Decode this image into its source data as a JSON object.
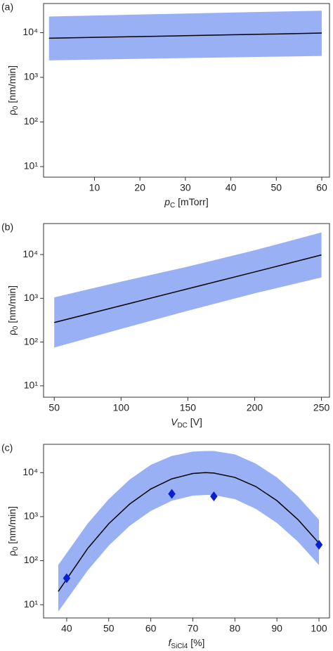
{
  "chart_data": [
    {
      "type": "line",
      "panel": "(a)",
      "log_y": true,
      "x_label": [
        "p",
        "C",
        " [mTorr]"
      ],
      "y_label": [
        "ρ",
        "0",
        " [nm/min]"
      ],
      "xlim": [
        -1.2,
        61.7
      ],
      "xticks": [
        10,
        20,
        30,
        40,
        50,
        60
      ],
      "ylim": [
        5.8,
        45000
      ],
      "yticks": [
        {
          "value": 10,
          "label": "10¹"
        },
        {
          "value": 100,
          "label": "10²"
        },
        {
          "value": 1000,
          "label": "10³"
        },
        {
          "value": 10000,
          "label": "10⁴"
        }
      ],
      "x": [
        0,
        10,
        20,
        30,
        40,
        50,
        60
      ],
      "band": {
        "color": "#99b0f5",
        "lower": [
          2400,
          2500,
          2600,
          2700,
          2800,
          2900,
          3000
        ],
        "upper": [
          23000,
          24200,
          25500,
          26800,
          28200,
          29600,
          31000
        ]
      },
      "line": {
        "color": "#000000",
        "values": [
          7500,
          7850,
          8200,
          8550,
          8950,
          9350,
          9800
        ]
      }
    },
    {
      "type": "line",
      "panel": "(b)",
      "log_y": true,
      "x_label": [
        "V",
        "DC",
        " [V]"
      ],
      "y_label": [
        "ρ",
        "0",
        " [nm/min]"
      ],
      "xlim": [
        42,
        256
      ],
      "xticks": [
        50,
        100,
        150,
        200,
        250
      ],
      "ylim": [
        5.5,
        51000
      ],
      "yticks": [
        {
          "value": 10,
          "label": "10¹"
        },
        {
          "value": 100,
          "label": "10²"
        },
        {
          "value": 1000,
          "label": "10³"
        },
        {
          "value": 10000,
          "label": "10⁴"
        }
      ],
      "x": [
        50,
        100,
        150,
        200,
        250
      ],
      "band": {
        "color": "#99b0f5",
        "lower": [
          75,
          200,
          520,
          1300,
          3000
        ],
        "upper": [
          1050,
          2400,
          5300,
          12500,
          32000
        ]
      },
      "line": {
        "color": "#000000",
        "values": [
          280,
          680,
          1650,
          4000,
          9800
        ]
      }
    },
    {
      "type": "line",
      "panel": "(c)",
      "log_y": true,
      "x_label": [
        "f",
        "SiCl4",
        " [%]"
      ],
      "y_label": [
        "ρ",
        "0",
        " [nm/min]"
      ],
      "xlim": [
        34.5,
        102.5
      ],
      "xticks": [
        40,
        50,
        60,
        70,
        80,
        90,
        100
      ],
      "ylim": [
        5,
        44000
      ],
      "yticks": [
        {
          "value": 10,
          "label": "10¹"
        },
        {
          "value": 100,
          "label": "10²"
        },
        {
          "value": 1000,
          "label": "10³"
        },
        {
          "value": 10000,
          "label": "10⁴"
        }
      ],
      "x": [
        38,
        45,
        50,
        55,
        60,
        65,
        70,
        73,
        75,
        80,
        85,
        90,
        95,
        100
      ],
      "band": {
        "color": "#99b0f5",
        "lower": [
          7,
          60,
          220,
          620,
          1350,
          2300,
          3000,
          3100,
          3100,
          2500,
          1500,
          720,
          270,
          80
        ],
        "upper": [
          80,
          700,
          2500,
          7000,
          15000,
          24000,
          30000,
          31000,
          31000,
          26000,
          16000,
          7800,
          2900,
          850
        ]
      },
      "line": {
        "color": "#000000",
        "values": [
          20,
          190,
          690,
          1940,
          4250,
          7230,
          9550,
          10000,
          9800,
          7800,
          4820,
          2310,
          860,
          250
        ]
      },
      "points": {
        "color": "#0a1ed2",
        "x": [
          40,
          65,
          75,
          100
        ],
        "values": [
          40,
          3300,
          2900,
          230
        ]
      }
    }
  ]
}
